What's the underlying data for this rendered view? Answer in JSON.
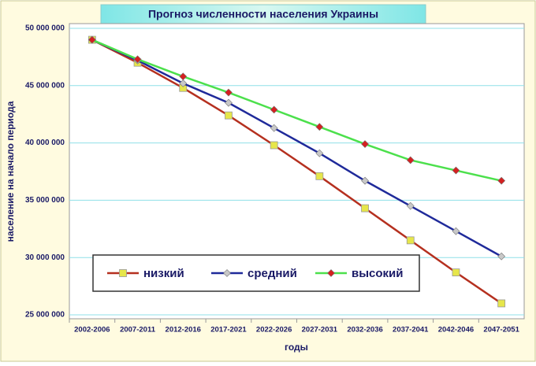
{
  "chart_data": {
    "type": "line",
    "title": "Прогноз численности населения Украины",
    "x_label": "годы",
    "y_label": "население на начало периода",
    "categories": [
      "2002-2006",
      "2007-2011",
      "2012-2016",
      "2017-2021",
      "2022-2026",
      "2027-2031",
      "2032-2036",
      "2037-2041",
      "2042-2046",
      "2047-2051"
    ],
    "ylim": [
      25000000,
      50000000
    ],
    "yticks": [
      {
        "value": 25000000,
        "label": "25 000 000"
      },
      {
        "value": 30000000,
        "label": "30 000 000"
      },
      {
        "value": 35000000,
        "label": "35 000 000"
      },
      {
        "value": 40000000,
        "label": "40 000 000"
      },
      {
        "value": 45000000,
        "label": "45 000 000"
      },
      {
        "value": 50000000,
        "label": "50 000 000"
      }
    ],
    "grid": true,
    "series": [
      {
        "name": "низкий",
        "color": "#b5301f",
        "marker": "square",
        "marker_color": "#e6e64a",
        "values": [
          49000000,
          47000000,
          44800000,
          42400000,
          39800000,
          37100000,
          34300000,
          31500000,
          28700000,
          26000000
        ]
      },
      {
        "name": "средний",
        "color": "#1f2a9a",
        "marker": "diamond",
        "marker_color": "#c8c8c8",
        "values": [
          49000000,
          47200000,
          45200000,
          43500000,
          41300000,
          39100000,
          36700000,
          34500000,
          32300000,
          30100000
        ]
      },
      {
        "name": "высокий",
        "color": "#4ce04c",
        "marker": "diamond",
        "marker_color": "#d42020",
        "values": [
          49000000,
          47300000,
          45800000,
          44400000,
          42900000,
          41400000,
          39900000,
          38500000,
          37600000,
          36700000
        ]
      }
    ]
  }
}
